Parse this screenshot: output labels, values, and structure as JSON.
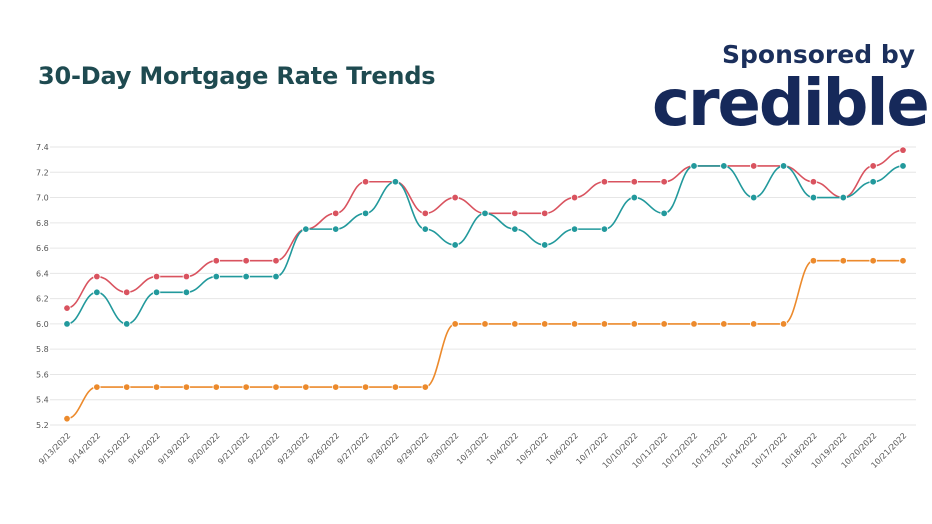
{
  "header": {
    "title": "30-Day Mortgage Rate Trends",
    "sponsor_label": "Sponsored by",
    "brand": "credible"
  },
  "chart_data": {
    "type": "line",
    "title": "30-Day Mortgage Rate Trends",
    "xlabel": "",
    "ylabel": "",
    "ylim": [
      5.2,
      7.4
    ],
    "yticks": [
      "5.2",
      "5.4",
      "5.6",
      "5.8",
      "6.0",
      "6.2",
      "6.4",
      "6.6",
      "6.8",
      "7.0",
      "7.2",
      "7.4"
    ],
    "grid": true,
    "categories": [
      "9/13/2022",
      "9/14/2022",
      "9/15/2022",
      "9/16/2022",
      "9/19/2022",
      "9/20/2022",
      "9/21/2022",
      "9/22/2022",
      "9/23/2022",
      "9/26/2022",
      "9/27/2022",
      "9/28/2022",
      "9/29/2022",
      "9/30/2022",
      "10/3/2022",
      "10/4/2022",
      "10/5/2022",
      "10/6/2022",
      "10/7/2022",
      "10/10/2022",
      "10/11/2022",
      "10/12/2022",
      "10/13/2022",
      "10/14/2022",
      "10/17/2022",
      "10/18/2022",
      "10/19/2022",
      "10/20/2022",
      "10/21/2022"
    ],
    "series": [
      {
        "color": "#d9535f",
        "values": [
          6.125,
          6.375,
          6.25,
          6.375,
          6.375,
          6.5,
          6.5,
          6.5,
          6.75,
          6.875,
          7.125,
          7.125,
          6.875,
          7.0,
          6.875,
          6.875,
          6.875,
          7.0,
          7.125,
          7.125,
          7.125,
          7.25,
          7.25,
          7.25,
          7.25,
          7.125,
          7.0,
          7.25,
          7.375
        ]
      },
      {
        "color": "#22999c",
        "values": [
          6.0,
          6.25,
          6.0,
          6.25,
          6.25,
          6.375,
          6.375,
          6.375,
          6.75,
          6.75,
          6.875,
          7.125,
          6.75,
          6.625,
          6.875,
          6.75,
          6.625,
          6.75,
          6.75,
          7.0,
          6.875,
          7.25,
          7.25,
          7.0,
          7.25,
          7.0,
          7.0,
          7.125,
          7.25
        ]
      },
      {
        "color": "#ec8a2c",
        "values": [
          5.25,
          5.5,
          5.5,
          5.5,
          5.5,
          5.5,
          5.5,
          5.5,
          5.5,
          5.5,
          5.5,
          5.5,
          5.5,
          6.0,
          6.0,
          6.0,
          6.0,
          6.0,
          6.0,
          6.0,
          6.0,
          6.0,
          6.0,
          6.0,
          6.0,
          6.5,
          6.5,
          6.5,
          6.5
        ]
      }
    ]
  }
}
